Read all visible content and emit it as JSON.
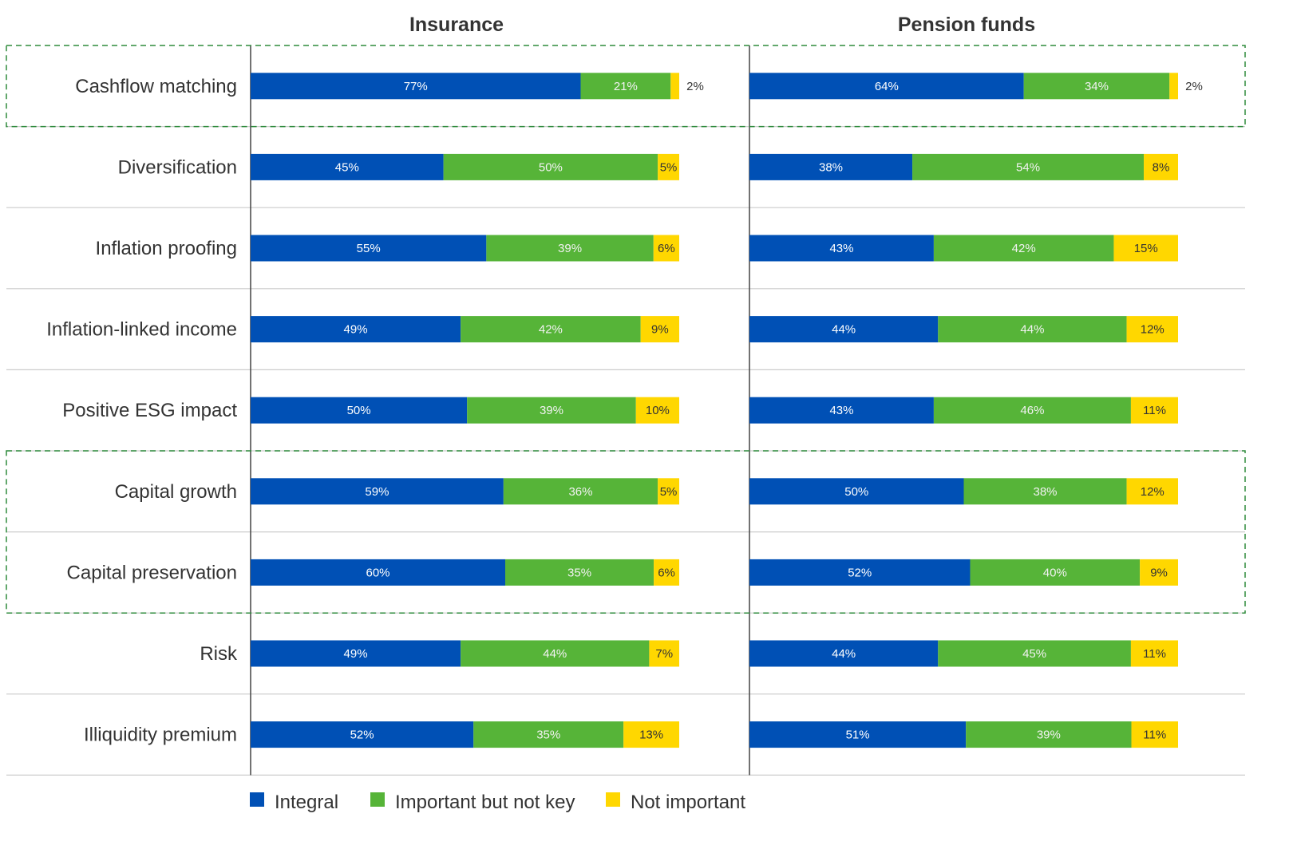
{
  "chart_data": {
    "type": "bar",
    "orientation": "horizontal",
    "stacked": true,
    "panels": [
      "Insurance",
      "Pension funds"
    ],
    "categories": [
      "Cashflow matching",
      "Diversification",
      "Inflation proofing",
      "Inflation-linked income",
      "Positive ESG impact",
      "Capital growth",
      "Capital preservation",
      "Risk",
      "Illiquidity premium"
    ],
    "series": [
      {
        "name": "Integral",
        "color": "#0050b5",
        "insurance": [
          77,
          45,
          55,
          49,
          50,
          59,
          60,
          49,
          52
        ],
        "pension": [
          64,
          38,
          43,
          44,
          43,
          50,
          52,
          44,
          51
        ]
      },
      {
        "name": "Important but not key",
        "color": "#56b438",
        "insurance": [
          21,
          50,
          39,
          42,
          39,
          36,
          35,
          44,
          35
        ],
        "pension": [
          34,
          54,
          42,
          44,
          46,
          38,
          40,
          45,
          39
        ]
      },
      {
        "name": "Not important",
        "color": "#ffd700",
        "insurance": [
          2,
          5,
          6,
          9,
          10,
          5,
          6,
          7,
          13
        ],
        "pension": [
          2,
          8,
          15,
          12,
          11,
          12,
          9,
          11,
          11
        ]
      }
    ],
    "value_suffix": "%",
    "highlighted_groups": [
      [
        0
      ],
      [
        5,
        6
      ]
    ],
    "legend_position": "bottom",
    "grid": false
  }
}
